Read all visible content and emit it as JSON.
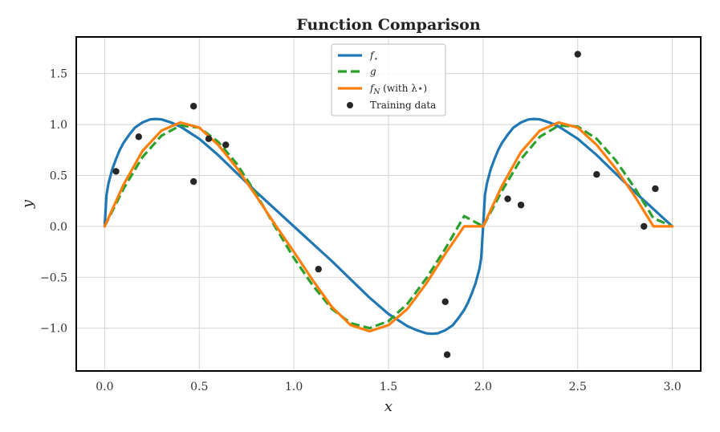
{
  "chart_data": {
    "type": "line",
    "title": "Function Comparison",
    "xlabel": "x",
    "ylabel": "y",
    "xlim": [
      -0.15,
      3.15
    ],
    "ylim": [
      -1.42,
      1.86
    ],
    "xticks": [
      0.0,
      0.5,
      1.0,
      1.5,
      2.0,
      2.5,
      3.0
    ],
    "xtick_labels": [
      "0.0",
      "0.5",
      "1.0",
      "1.5",
      "2.0",
      "2.5",
      "3.0"
    ],
    "yticks": [
      -1.0,
      -0.5,
      0.0,
      0.5,
      1.0,
      1.5
    ],
    "ytick_labels": [
      "−1.0",
      "−0.5",
      "0.0",
      "0.5",
      "1.0",
      "1.5"
    ],
    "grid": true,
    "legend_position": "top-center",
    "series": [
      {
        "name": "f⋆",
        "legend_main": "f",
        "legend_sub": "⋆",
        "color": "#1f77b4",
        "style": "solid",
        "x": [
          0.0,
          0.01,
          0.02,
          0.04,
          0.06,
          0.08,
          0.1,
          0.13,
          0.16,
          0.2,
          0.24,
          0.27,
          0.3,
          0.35,
          0.4,
          0.5,
          0.6,
          0.7,
          0.8,
          0.9,
          1.0,
          1.1,
          1.2,
          1.3,
          1.4,
          1.5,
          1.6,
          1.65,
          1.7,
          1.73,
          1.76,
          1.8,
          1.84,
          1.87,
          1.9,
          1.92,
          1.94,
          1.96,
          1.98,
          1.99,
          2.0,
          2.01,
          2.02,
          2.04,
          2.06,
          2.08,
          2.1,
          2.13,
          2.16,
          2.2,
          2.24,
          2.27,
          2.3,
          2.35,
          2.4,
          2.5,
          2.6,
          2.7,
          2.8,
          2.9,
          3.0
        ],
        "y": [
          0.0,
          0.31,
          0.42,
          0.56,
          0.66,
          0.75,
          0.82,
          0.9,
          0.97,
          1.02,
          1.05,
          1.055,
          1.05,
          1.02,
          0.98,
          0.86,
          0.7,
          0.52,
          0.34,
          0.17,
          0.0,
          -0.17,
          -0.34,
          -0.52,
          -0.7,
          -0.86,
          -0.98,
          -1.02,
          -1.05,
          -1.055,
          -1.05,
          -1.02,
          -0.97,
          -0.9,
          -0.82,
          -0.75,
          -0.66,
          -0.56,
          -0.42,
          -0.31,
          0.0,
          0.31,
          0.42,
          0.56,
          0.66,
          0.75,
          0.82,
          0.9,
          0.97,
          1.02,
          1.05,
          1.055,
          1.05,
          1.02,
          0.98,
          0.86,
          0.7,
          0.52,
          0.34,
          0.17,
          0.0
        ]
      },
      {
        "name": "g",
        "legend_main": "g",
        "legend_sub": "",
        "color": "#2ca02c",
        "style": "dashed",
        "x": [
          0.0,
          0.1,
          0.2,
          0.3,
          0.4,
          0.5,
          0.6,
          0.7,
          0.8,
          0.9,
          1.0,
          1.1,
          1.2,
          1.3,
          1.4,
          1.5,
          1.6,
          1.7,
          1.8,
          1.9,
          2.0,
          2.1,
          2.2,
          2.3,
          2.4,
          2.5,
          2.6,
          2.7,
          2.8,
          2.9,
          3.0
        ],
        "y": [
          0.0,
          0.37,
          0.68,
          0.89,
          0.99,
          0.97,
          0.83,
          0.61,
          0.32,
          0.0,
          -0.31,
          -0.58,
          -0.81,
          -0.95,
          -1.0,
          -0.93,
          -0.76,
          -0.51,
          -0.22,
          0.1,
          0.0,
          0.35,
          0.66,
          0.88,
          0.99,
          0.98,
          0.86,
          0.65,
          0.38,
          0.08,
          0.0
        ]
      },
      {
        "name": "fN (with λ⋆)",
        "legend_main": "f",
        "legend_sub": "N",
        "legend_suffix": " (with λ⋆)",
        "color": "#ff7f0e",
        "style": "solid",
        "x": [
          0.0,
          0.1,
          0.2,
          0.3,
          0.4,
          0.5,
          0.6,
          0.7,
          0.8,
          0.9,
          1.0,
          1.1,
          1.2,
          1.3,
          1.4,
          1.5,
          1.6,
          1.7,
          1.8,
          1.9,
          2.0,
          2.1,
          2.2,
          2.3,
          2.4,
          2.5,
          2.6,
          2.7,
          2.8,
          2.9,
          3.0
        ],
        "y": [
          0.0,
          0.41,
          0.74,
          0.94,
          1.02,
          0.97,
          0.8,
          0.57,
          0.3,
          0.02,
          -0.25,
          -0.53,
          -0.79,
          -0.97,
          -1.03,
          -0.97,
          -0.81,
          -0.56,
          -0.27,
          0.0,
          0.0,
          0.4,
          0.73,
          0.94,
          1.02,
          0.97,
          0.8,
          0.57,
          0.3,
          0.0,
          0.0
        ]
      }
    ],
    "scatter": {
      "name": "Training data",
      "color": "#262626",
      "x": [
        0.06,
        0.18,
        0.47,
        0.47,
        0.55,
        0.64,
        1.13,
        1.8,
        1.81,
        2.13,
        2.2,
        2.5,
        2.6,
        2.85,
        2.91
      ],
      "y": [
        0.54,
        0.88,
        1.18,
        0.44,
        0.86,
        0.8,
        -0.42,
        -0.74,
        -1.26,
        0.27,
        0.21,
        1.69,
        0.51,
        0.0,
        0.37
      ]
    }
  }
}
